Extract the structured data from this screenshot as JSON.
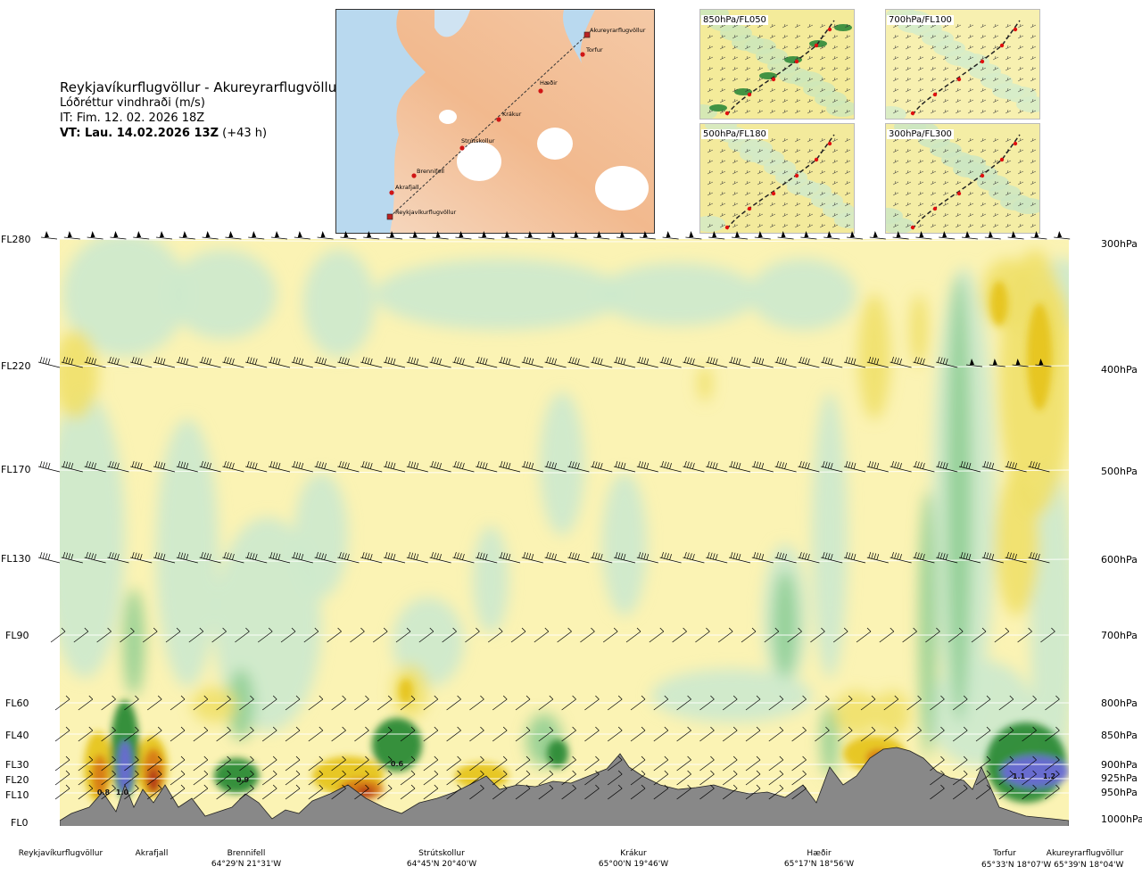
{
  "title": {
    "route": "Reykjavíkurflugvöllur - Akureyrarflugvöllur",
    "quantity": "Lóðréttur vindhraði (m/s)",
    "init_time": "IT: Fim. 12. 02. 2026 18Z",
    "valid_prefix": "VT: Lau. 14.02.2026 13Z",
    "valid_suffix": "(+43 h)"
  },
  "map": {
    "places": [
      "Akureyrarflugvöllur",
      "Torfur",
      "Hæðir",
      "Krákur",
      "Strútskollur",
      "Brennifell",
      "Akrafjall",
      "Reykjavíkurflugvöllur"
    ]
  },
  "mini_maps": [
    {
      "label": "850hPa/FL050"
    },
    {
      "label": "700hPa/FL100"
    },
    {
      "label": "500hPa/FL180"
    },
    {
      "label": "300hPa/FL300"
    }
  ],
  "chart_data": {
    "type": "heatmap",
    "title": "Lóðréttur vindhraði (m/s)",
    "x_locations": [
      {
        "name": "Reykjavíkurflugvöllur",
        "coords": ""
      },
      {
        "name": "Akrafjall",
        "coords": ""
      },
      {
        "name": "Brennifell",
        "coords": "64°29'N 21°31'W"
      },
      {
        "name": "Strútskollur",
        "coords": "64°45'N 20°40'W"
      },
      {
        "name": "Krákur",
        "coords": "65°00'N 19°46'W"
      },
      {
        "name": "Hæðir",
        "coords": "65°17'N 18°56'W"
      },
      {
        "name": "Torfur",
        "coords": "65°33'N 18°07'W"
      },
      {
        "name": "Akureyrarflugvöllur",
        "coords": "65°39'N 18°04'W"
      }
    ],
    "flight_levels": [
      "FL280",
      "FL220",
      "FL170",
      "FL130",
      "FL90",
      "FL60",
      "FL40",
      "FL30",
      "FL20",
      "FL10",
      "FL0"
    ],
    "pressure_levels": [
      "300hPa",
      "400hPa",
      "500hPa",
      "600hPa",
      "700hPa",
      "800hPa",
      "850hPa",
      "900hPa",
      "925hPa",
      "950hPa",
      "1000hPa"
    ],
    "value_labels": [
      "0.8",
      "1.0",
      "0.9",
      "0.6",
      "1.1",
      "1.2"
    ],
    "colors": {
      "down_light": "#cfe9cc",
      "down_mid": "#8ccc91",
      "down_strong": "#2a8a35",
      "down_max": "#6a6ad8",
      "up_light": "#fbf3b4",
      "up_mid": "#f0e06a",
      "up_strong": "#e6c41e",
      "up_max": "#d87a18",
      "up_extreme": "#b03218",
      "terrain": "#888888"
    }
  }
}
